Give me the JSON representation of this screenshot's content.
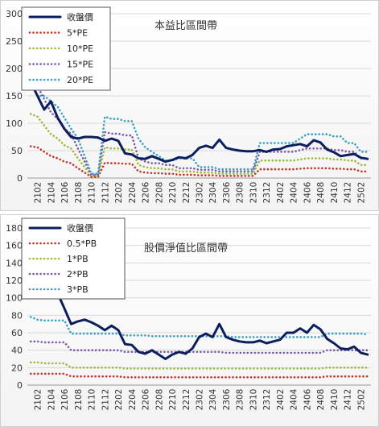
{
  "chart_data": [
    {
      "type": "line",
      "title": "本益比區間帶",
      "xlabel": "",
      "ylabel": "",
      "ylim": [
        0,
        300
      ],
      "yticks": [
        0,
        50,
        100,
        150,
        200,
        250,
        300
      ],
      "grid": true,
      "legend": "top-left",
      "x": [
        "2101",
        "2102",
        "2103",
        "2104",
        "2105",
        "2106",
        "2107",
        "2108",
        "2109",
        "2110",
        "2111",
        "2112",
        "2201",
        "2202",
        "2203",
        "2204",
        "2205",
        "2206",
        "2207",
        "2208",
        "2209",
        "2210",
        "2211",
        "2212",
        "2301",
        "2302",
        "2303",
        "2304",
        "2305",
        "2306",
        "2307",
        "2308",
        "2309",
        "2310",
        "2311",
        "2312",
        "2401",
        "2402",
        "2403",
        "2404",
        "2405",
        "2406",
        "2407",
        "2408",
        "2409",
        "2410",
        "2411",
        "2412",
        "2501",
        "2502",
        "2503"
      ],
      "xtick_labels": [
        "2102",
        "2104",
        "2106",
        "2108",
        "2110",
        "2112",
        "2202",
        "2204",
        "2206",
        "2208",
        "2210",
        "2212",
        "2302",
        "2304",
        "2306",
        "2308",
        "2310",
        "2312",
        "2402",
        "2404",
        "2406",
        "2408",
        "2410",
        "2412",
        "2502"
      ],
      "series": [
        {
          "name": "收盤價",
          "color": "#0b1f5e",
          "style": "solid",
          "values": [
            175,
            150,
            125,
            140,
            110,
            90,
            75,
            72,
            75,
            75,
            74,
            68,
            72,
            68,
            45,
            43,
            36,
            35,
            40,
            35,
            30,
            33,
            38,
            36,
            42,
            55,
            59,
            55,
            70,
            55,
            52,
            50,
            49,
            49,
            51,
            48,
            52,
            53,
            58,
            60,
            62,
            58,
            69,
            65,
            52,
            47,
            40,
            42,
            44,
            37,
            35
          ]
        },
        {
          "name": "5*PE",
          "color": "#c0392b",
          "style": "dotted",
          "values": [
            58,
            56,
            48,
            40,
            36,
            30,
            27,
            18,
            10,
            2,
            2,
            28,
            27,
            27,
            26,
            26,
            12,
            10,
            9,
            9,
            8,
            8,
            6,
            6,
            6,
            5,
            5,
            5,
            4,
            4,
            4,
            4,
            4,
            4,
            16,
            16,
            16,
            16,
            16,
            16,
            17,
            18,
            18,
            18,
            18,
            17,
            17,
            16,
            16,
            12,
            12
          ]
        },
        {
          "name": "10*PE",
          "color": "#9bbb3c",
          "style": "dotted",
          "values": [
            117,
            112,
            96,
            80,
            72,
            60,
            54,
            36,
            20,
            4,
            4,
            56,
            54,
            54,
            52,
            52,
            24,
            20,
            18,
            18,
            16,
            16,
            12,
            12,
            12,
            10,
            10,
            10,
            8,
            8,
            8,
            8,
            8,
            8,
            32,
            32,
            32,
            32,
            32,
            32,
            34,
            36,
            36,
            36,
            36,
            34,
            34,
            32,
            32,
            24,
            24
          ]
        },
        {
          "name": "15*PE",
          "color": "#7d5ba6",
          "style": "dotted",
          "values": [
            175,
            168,
            144,
            120,
            108,
            90,
            81,
            54,
            30,
            6,
            6,
            84,
            81,
            81,
            78,
            78,
            36,
            30,
            27,
            27,
            24,
            24,
            18,
            18,
            18,
            15,
            15,
            15,
            12,
            12,
            12,
            12,
            12,
            12,
            48,
            48,
            48,
            48,
            48,
            48,
            51,
            54,
            54,
            54,
            54,
            51,
            51,
            48,
            48,
            36,
            36
          ]
        },
        {
          "name": "20*PE",
          "color": "#3aa0c4",
          "style": "dotted",
          "values": [
            175,
            150,
            150,
            140,
            130,
            110,
            90,
            72,
            40,
            8,
            8,
            112,
            108,
            108,
            104,
            104,
            72,
            56,
            48,
            40,
            32,
            32,
            36,
            36,
            36,
            20,
            20,
            20,
            16,
            16,
            16,
            16,
            16,
            16,
            64,
            64,
            64,
            64,
            64,
            64,
            72,
            80,
            80,
            80,
            80,
            76,
            76,
            64,
            64,
            48,
            48
          ]
        }
      ]
    },
    {
      "type": "line",
      "title": "股價淨值比區間帶",
      "xlabel": "",
      "ylabel": "",
      "ylim": [
        0,
        180
      ],
      "yticks": [
        0,
        20,
        40,
        60,
        80,
        100,
        120,
        140,
        160,
        180
      ],
      "grid": true,
      "legend": "top-left",
      "x": [
        "2101",
        "2102",
        "2103",
        "2104",
        "2105",
        "2106",
        "2107",
        "2108",
        "2109",
        "2110",
        "2111",
        "2112",
        "2201",
        "2202",
        "2203",
        "2204",
        "2205",
        "2206",
        "2207",
        "2208",
        "2209",
        "2210",
        "2211",
        "2212",
        "2301",
        "2302",
        "2303",
        "2304",
        "2305",
        "2306",
        "2307",
        "2308",
        "2309",
        "2310",
        "2311",
        "2312",
        "2401",
        "2402",
        "2403",
        "2404",
        "2405",
        "2406",
        "2407",
        "2408",
        "2409",
        "2410",
        "2411",
        "2412",
        "2501",
        "2502",
        "2503"
      ],
      "xtick_labels": [
        "2102",
        "2104",
        "2106",
        "2108",
        "2110",
        "2112",
        "2202",
        "2204",
        "2206",
        "2208",
        "2210",
        "2212",
        "2302",
        "2304",
        "2306",
        "2308",
        "2310",
        "2312",
        "2402",
        "2404",
        "2406",
        "2408",
        "2410",
        "2412",
        "2502"
      ],
      "series": [
        {
          "name": "收盤價",
          "color": "#0b1f5e",
          "style": "solid",
          "values": [
            175,
            150,
            125,
            140,
            105,
            88,
            70,
            73,
            75,
            72,
            68,
            63,
            68,
            63,
            47,
            46,
            38,
            36,
            40,
            35,
            30,
            35,
            38,
            36,
            42,
            55,
            59,
            55,
            70,
            55,
            52,
            50,
            49,
            49,
            51,
            48,
            50,
            52,
            60,
            60,
            65,
            60,
            69,
            64,
            53,
            48,
            42,
            41,
            44,
            37,
            35
          ]
        },
        {
          "name": "0.5*PB",
          "color": "#c0392b",
          "style": "dotted",
          "values": [
            13,
            13,
            13,
            13,
            13,
            13,
            10,
            10,
            10,
            10,
            10,
            10,
            10,
            10,
            9,
            9,
            9,
            9,
            9,
            9,
            9,
            9,
            9,
            9,
            9,
            9,
            9,
            9,
            9,
            9,
            9,
            9,
            9,
            9,
            9,
            9,
            9,
            9,
            9,
            9,
            9,
            9,
            9,
            9,
            10,
            10,
            10,
            10,
            10,
            10,
            10
          ]
        },
        {
          "name": "1*PB",
          "color": "#9bbb3c",
          "style": "dotted",
          "values": [
            26,
            26,
            25,
            25,
            25,
            25,
            20,
            20,
            20,
            20,
            20,
            20,
            20,
            20,
            19,
            19,
            19,
            19,
            19,
            19,
            19,
            19,
            19,
            19,
            19,
            19,
            19,
            19,
            19,
            19,
            19,
            19,
            19,
            19,
            19,
            19,
            19,
            19,
            19,
            19,
            19,
            19,
            19,
            19,
            20,
            20,
            20,
            20,
            20,
            20,
            20
          ]
        },
        {
          "name": "2*PB",
          "color": "#7d5ba6",
          "style": "dotted",
          "values": [
            50,
            50,
            49,
            49,
            49,
            49,
            40,
            40,
            40,
            40,
            40,
            40,
            40,
            40,
            38,
            38,
            38,
            38,
            38,
            38,
            38,
            38,
            38,
            38,
            38,
            38,
            38,
            38,
            38,
            37,
            37,
            37,
            37,
            37,
            37,
            37,
            37,
            37,
            37,
            37,
            37,
            37,
            37,
            37,
            40,
            40,
            40,
            40,
            40,
            40,
            40
          ]
        },
        {
          "name": "3*PB",
          "color": "#3aa0c4",
          "style": "dotted",
          "values": [
            78,
            75,
            74,
            74,
            74,
            74,
            59,
            59,
            59,
            59,
            59,
            59,
            59,
            59,
            57,
            57,
            57,
            57,
            56,
            56,
            56,
            56,
            56,
            56,
            56,
            56,
            56,
            56,
            56,
            56,
            55,
            55,
            55,
            55,
            55,
            55,
            55,
            55,
            55,
            55,
            55,
            55,
            55,
            55,
            59,
            59,
            59,
            59,
            59,
            59,
            58
          ]
        }
      ]
    }
  ]
}
